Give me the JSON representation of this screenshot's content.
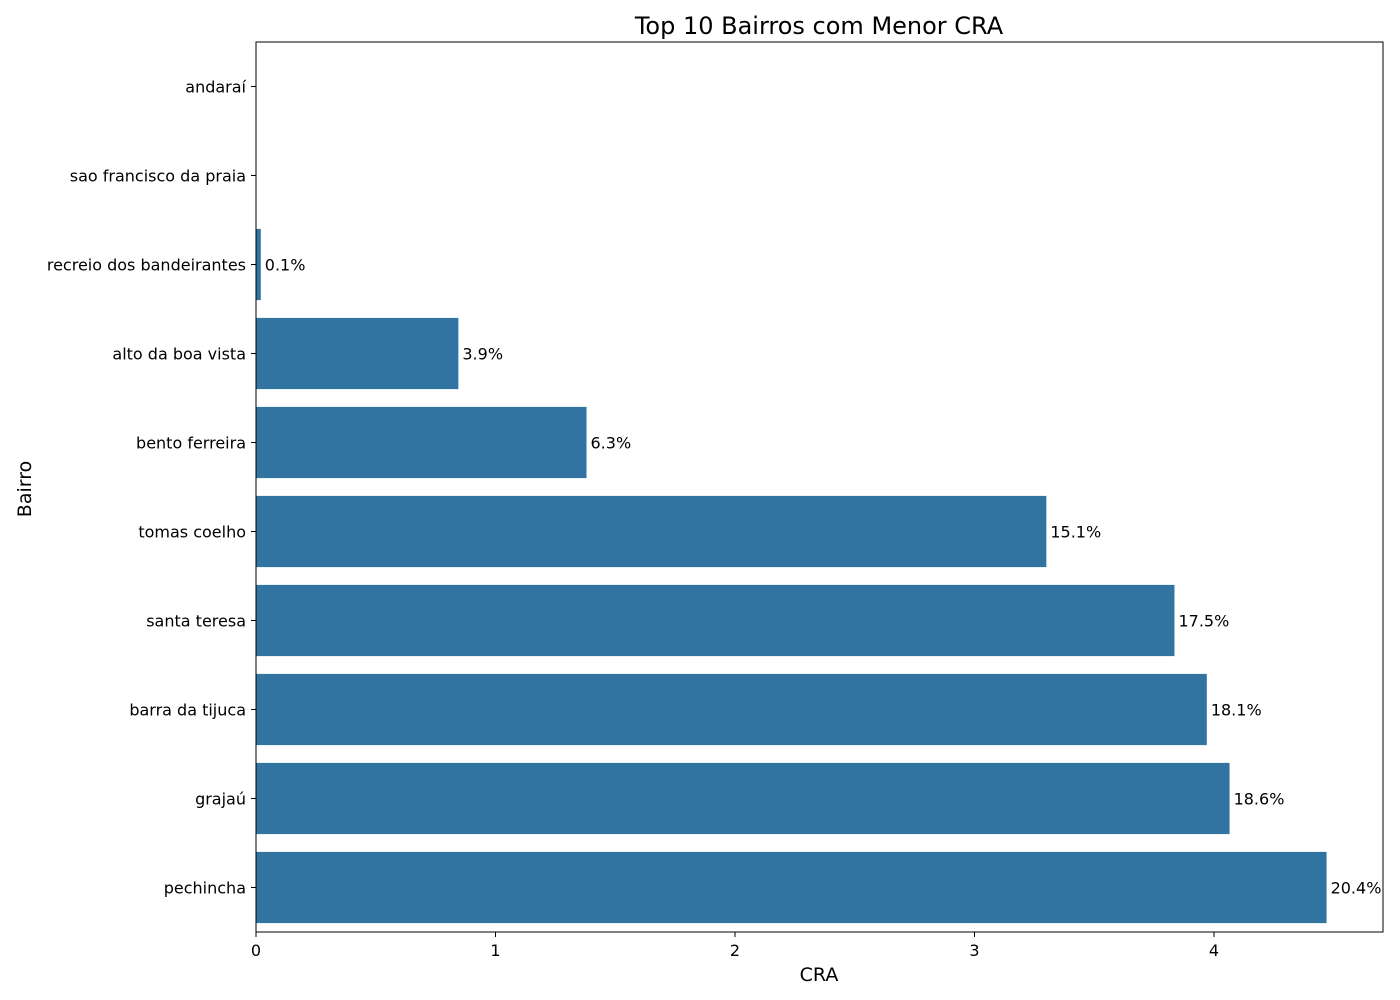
{
  "chart_data": {
    "type": "bar",
    "orientation": "horizontal",
    "title": "Top 10 Bairros com Menor CRA",
    "xlabel": "CRA",
    "ylabel": "Bairro",
    "xlim": [
      0,
      4.7
    ],
    "xticks": [
      0,
      1,
      2,
      3,
      4
    ],
    "bar_color": "#3274a1",
    "grid": false,
    "categories": [
      "andaraí",
      "sao francisco da praia",
      "recreio dos bandeirantes",
      "alto da boa vista",
      "bento ferreira",
      "tomas coelho",
      "santa teresa",
      "barra da tijuca",
      "grajaú",
      "pechincha"
    ],
    "values": [
      0.0,
      0.0,
      0.02,
      0.845,
      1.38,
      3.3,
      3.835,
      3.97,
      4.065,
      4.47
    ],
    "data_labels": [
      "",
      "",
      "0.1%",
      "3.9%",
      "6.3%",
      "15.1%",
      "17.5%",
      "18.1%",
      "18.6%",
      "20.4%"
    ]
  }
}
